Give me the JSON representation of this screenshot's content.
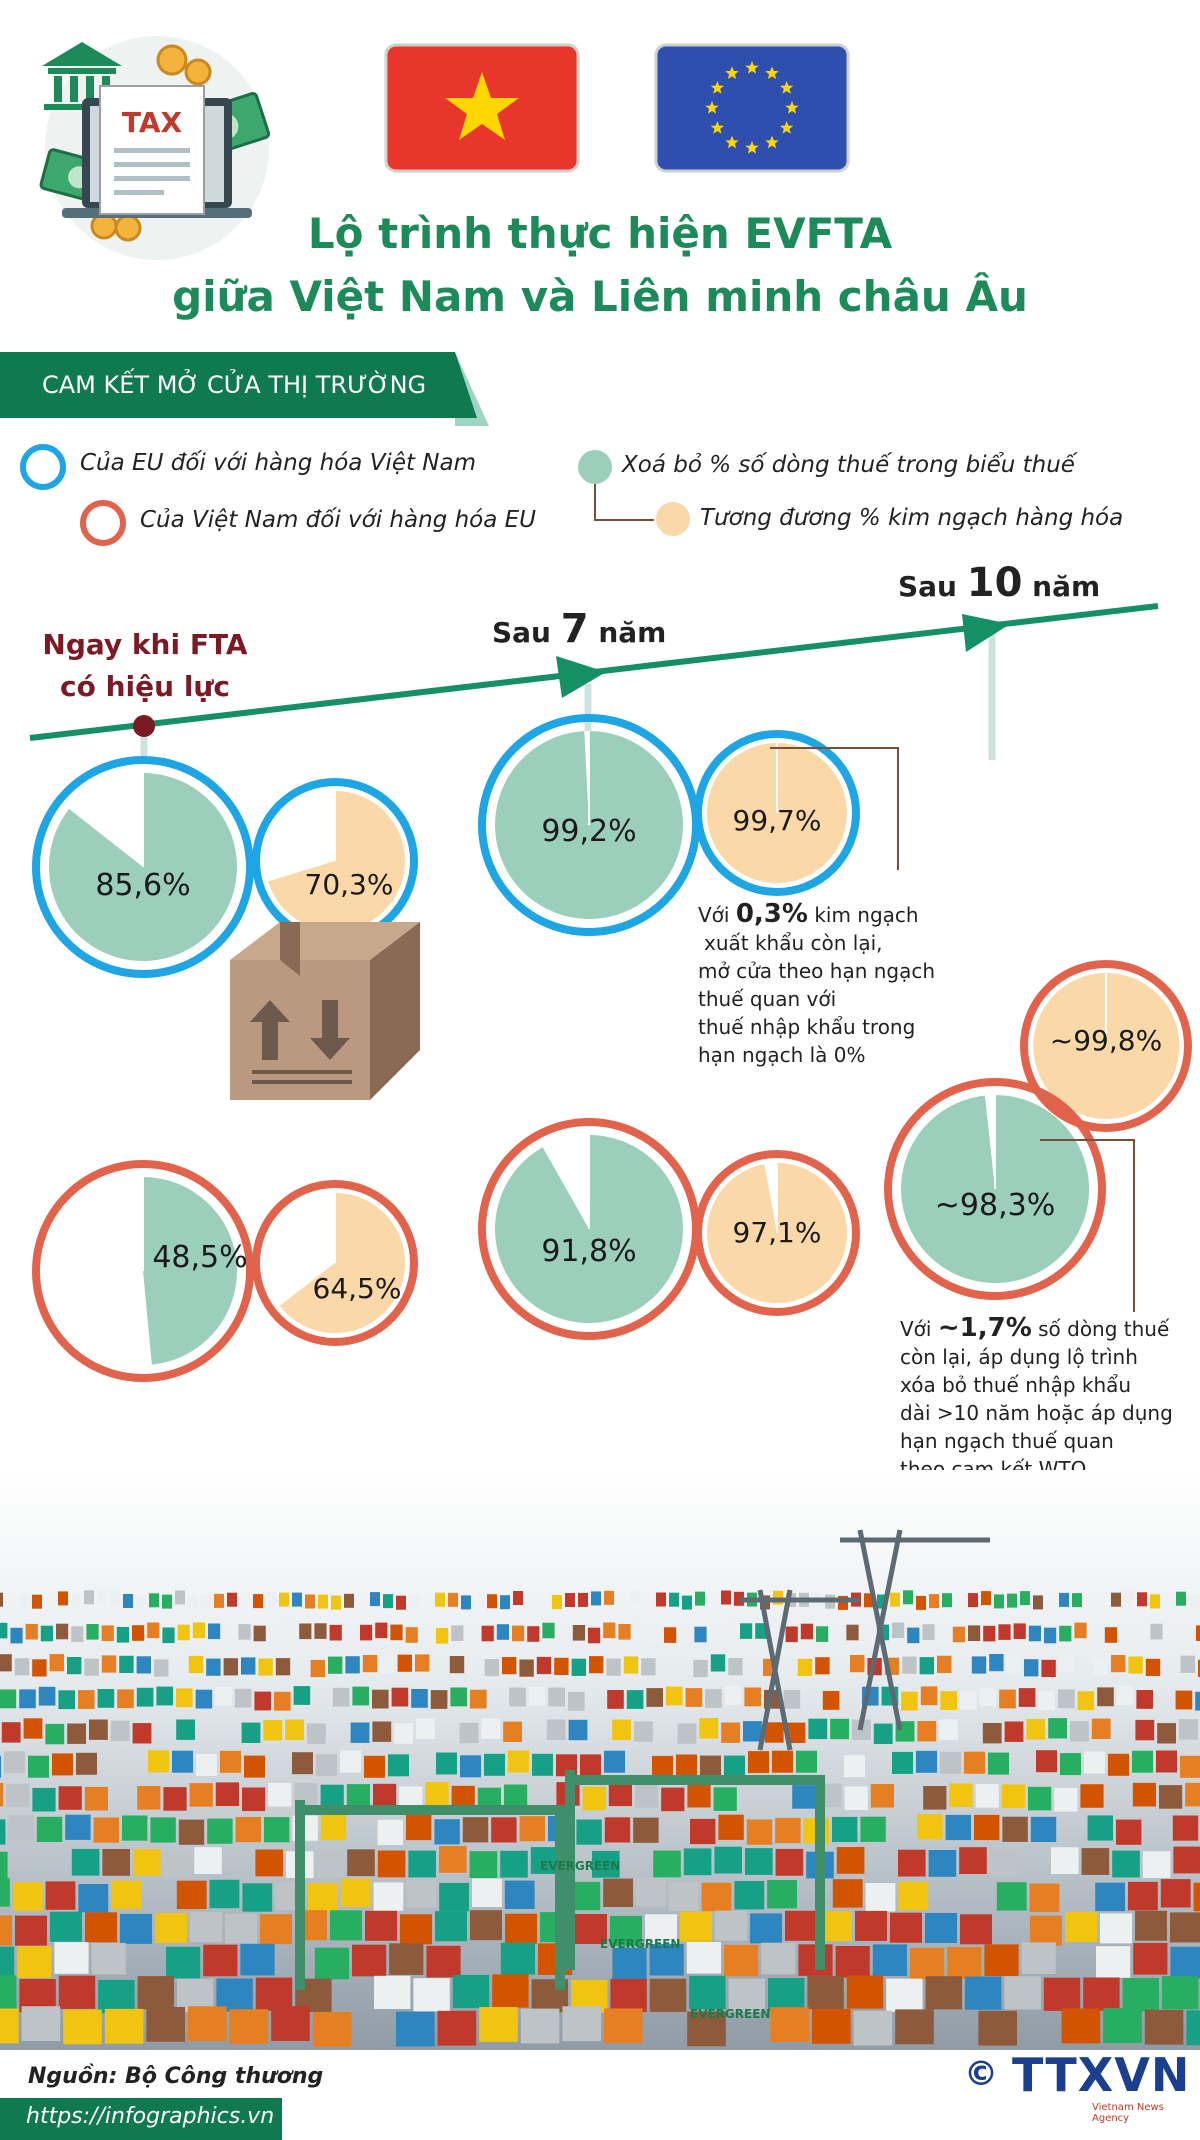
{
  "title_line1": "Lộ trình thực hiện EVFTA",
  "title_line2": "giữa Việt Nam và Liên minh châu Âu",
  "tax_label": "TAX",
  "section_banner": "CAM KẾT MỞ CỬA THỊ TRƯỜNG",
  "legend": {
    "eu_for_vn": "Của EU đối với hàng hóa Việt Nam",
    "vn_for_eu": "Của Việt Nam đối với hàng hóa EU",
    "tariff_lines": "Xoá bỏ % số dòng thuế trong biểu thuế",
    "trade_value": "Tương đương % kim ngạch hàng hóa"
  },
  "stages": {
    "immediate": {
      "line1": "Ngay khi FTA",
      "line2": "có hiệu lực"
    },
    "after7": {
      "prefix": "Sau",
      "num": "7",
      "suffix": "năm"
    },
    "after10": {
      "prefix": "Sau",
      "num": "10",
      "suffix": "năm"
    }
  },
  "pies": {
    "eu_now_lines": {
      "label": "85,6%",
      "value": 85.6
    },
    "eu_now_trade": {
      "label": "70,3%",
      "value": 70.3
    },
    "vn_now_lines": {
      "label": "48,5%",
      "value": 48.5
    },
    "vn_now_trade": {
      "label": "64,5%",
      "value": 64.5
    },
    "eu_7_lines": {
      "label": "99,2%",
      "value": 99.2
    },
    "eu_7_trade": {
      "label": "99,7%",
      "value": 99.7
    },
    "vn_7_lines": {
      "label": "91,8%",
      "value": 91.8
    },
    "vn_7_trade": {
      "label": "97,1%",
      "value": 97.1
    },
    "vn_10_trade": {
      "label": "~99,8%",
      "value": 99.8
    },
    "vn_10_lines": {
      "label": "~98,3%",
      "value": 98.3
    }
  },
  "note1": {
    "prefix": "Với",
    "value": "0,3%",
    "l1": "kim ngạch",
    "l2": "xuất khẩu còn lại,",
    "l3": "mở cửa theo hạn ngạch",
    "l4": "thuế quan với",
    "l5": "thuế nhập khẩu trong",
    "l6": "hạn ngạch là 0%"
  },
  "note2": {
    "prefix": "Với",
    "value": "~1,7%",
    "l1": "số dòng thuế",
    "l2": "còn lại, áp dụng lộ trình",
    "l3": "xóa bỏ thuế nhập khẩu",
    "l4": "dài >10 năm hoặc áp dụng",
    "l5": "hạn ngạch thuế quan",
    "l6": "theo cam kết WTO"
  },
  "container_label": "EVERGREEN",
  "source": "Nguồn: Bộ Công thương",
  "url": "https://infographics.vn",
  "logo": "TTXVN",
  "logo_sub": "Vietnam News Agency",
  "copyright": "©",
  "colors": {
    "green_pie": "#9bcfbc",
    "peach_pie": "#fbd8a8",
    "blue_ring": "#1ea5e4",
    "red_ring": "#e2634c",
    "timeline": "#149064",
    "title": "#1d8a5a"
  }
}
